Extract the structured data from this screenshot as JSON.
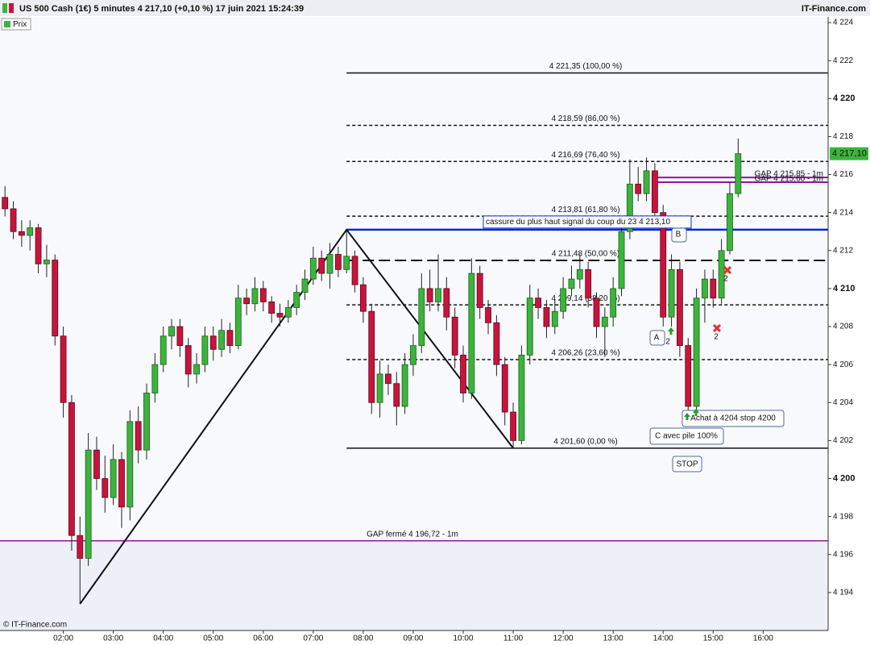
{
  "chart_data": {
    "type": "candlestick",
    "title": "US 500 Cash (1€) 5 minutes 4 217,10 (+0,10 %) 17 juin 2021 15:24:39",
    "source": "IT-Finance.com",
    "copyright": "© IT-Finance.com",
    "legend": "Prix",
    "up_color": "#3cb43c",
    "down_color": "#c8143c",
    "xlim": [
      "00:44",
      "17:18"
    ],
    "ylim": [
      4192.0,
      4224.3
    ],
    "xticks": [
      "02:00",
      "03:00",
      "04:00",
      "05:00",
      "06:00",
      "07:00",
      "08:00",
      "09:00",
      "10:00",
      "11:00",
      "12:00",
      "13:00",
      "14:00",
      "15:00",
      "16:00"
    ],
    "yticks": [
      {
        "value": 4194,
        "label": "4 194"
      },
      {
        "value": 4196,
        "label": "4 196"
      },
      {
        "value": 4198,
        "label": "4 198"
      },
      {
        "value": 4200,
        "label": "4 200"
      },
      {
        "value": 4202,
        "label": "4 202"
      },
      {
        "value": 4204,
        "label": "4 204"
      },
      {
        "value": 4206,
        "label": "4 206"
      },
      {
        "value": 4208,
        "label": "4 208"
      },
      {
        "value": 4210,
        "label": "4 210"
      },
      {
        "value": 4212,
        "label": "4 212"
      },
      {
        "value": 4214,
        "label": "4 214"
      },
      {
        "value": 4216,
        "label": "4 216"
      },
      {
        "value": 4218,
        "label": "4 218"
      },
      {
        "value": 4220,
        "label": "4 220"
      },
      {
        "value": 4222,
        "label": "4 222"
      },
      {
        "value": 4224,
        "label": "4 224"
      }
    ],
    "x": [
      "00:50",
      "01:00",
      "01:10",
      "01:20",
      "01:30",
      "01:40",
      "01:50",
      "02:00",
      "02:10",
      "02:20",
      "02:30",
      "02:40",
      "02:50",
      "03:00",
      "03:10",
      "03:20",
      "03:30",
      "03:40",
      "03:50",
      "04:00",
      "04:10",
      "04:20",
      "04:30",
      "04:40",
      "04:50",
      "05:00",
      "05:10",
      "05:20",
      "05:30",
      "05:40",
      "05:50",
      "06:00",
      "06:10",
      "06:20",
      "06:30",
      "06:40",
      "06:50",
      "07:00",
      "07:10",
      "07:20",
      "07:30",
      "07:40",
      "07:50",
      "08:00",
      "08:10",
      "08:20",
      "08:30",
      "08:40",
      "08:50",
      "09:00",
      "09:10",
      "09:20",
      "09:30",
      "09:40",
      "09:50",
      "10:00",
      "10:10",
      "10:20",
      "10:30",
      "10:40",
      "10:50",
      "11:00",
      "11:10",
      "11:20",
      "11:30",
      "11:40",
      "11:50",
      "12:00",
      "12:10",
      "12:20",
      "12:30",
      "12:40",
      "12:50",
      "13:00",
      "13:10",
      "13:20",
      "13:30",
      "13:40",
      "13:50",
      "14:00",
      "14:10",
      "14:20",
      "14:30",
      "14:40",
      "14:50",
      "15:00",
      "15:10",
      "15:20",
      "15:30"
    ],
    "ohlc": [
      [
        4214.8,
        4215.4,
        4213.8,
        4214.2
      ],
      [
        4214.2,
        4214.6,
        4212.6,
        4213.0
      ],
      [
        4213.0,
        4213.6,
        4212.2,
        4212.8
      ],
      [
        4212.8,
        4213.6,
        4212.0,
        4213.2
      ],
      [
        4213.2,
        4213.4,
        4210.8,
        4211.3
      ],
      [
        4211.3,
        4212.3,
        4210.6,
        4211.5
      ],
      [
        4211.5,
        4211.8,
        4207.0,
        4207.5
      ],
      [
        4207.5,
        4208.0,
        4203.2,
        4204.0
      ],
      [
        4204.0,
        4204.4,
        4196.2,
        4197.0
      ],
      [
        4197.0,
        4198.0,
        4193.4,
        4195.8
      ],
      [
        4195.8,
        4202.4,
        4195.4,
        4201.5
      ],
      [
        4201.5,
        4202.2,
        4199.4,
        4200.0
      ],
      [
        4200.0,
        4201.2,
        4198.2,
        4199.0
      ],
      [
        4199.0,
        4201.8,
        4198.6,
        4201.0
      ],
      [
        4201.0,
        4201.4,
        4197.4,
        4198.5
      ],
      [
        4198.5,
        4203.6,
        4197.8,
        4203.0
      ],
      [
        4203.0,
        4203.8,
        4200.8,
        4201.5
      ],
      [
        4201.5,
        4205.0,
        4201.0,
        4204.5
      ],
      [
        4204.5,
        4206.6,
        4204.0,
        4206.0
      ],
      [
        4206.0,
        4208.0,
        4205.6,
        4207.5
      ],
      [
        4207.5,
        4208.4,
        4206.8,
        4208.0
      ],
      [
        4208.0,
        4208.4,
        4206.4,
        4207.0
      ],
      [
        4207.0,
        4207.4,
        4204.8,
        4205.5
      ],
      [
        4205.5,
        4206.6,
        4205.0,
        4206.0
      ],
      [
        4206.0,
        4208.0,
        4205.6,
        4207.5
      ],
      [
        4207.5,
        4208.0,
        4206.2,
        4206.8
      ],
      [
        4206.8,
        4208.4,
        4206.4,
        4207.8
      ],
      [
        4207.8,
        4208.2,
        4206.6,
        4207.0
      ],
      [
        4207.0,
        4210.2,
        4206.8,
        4209.5
      ],
      [
        4209.5,
        4210.0,
        4208.6,
        4209.2
      ],
      [
        4209.2,
        4210.6,
        4208.8,
        4210.0
      ],
      [
        4210.0,
        4210.4,
        4208.8,
        4209.3
      ],
      [
        4209.3,
        4209.6,
        4208.2,
        4208.7
      ],
      [
        4208.7,
        4209.2,
        4208.0,
        4208.5
      ],
      [
        4208.5,
        4209.4,
        4208.2,
        4209.0
      ],
      [
        4209.0,
        4210.2,
        4208.6,
        4209.8
      ],
      [
        4209.8,
        4211.0,
        4209.4,
        4210.5
      ],
      [
        4210.5,
        4212.2,
        4210.2,
        4211.6
      ],
      [
        4211.6,
        4212.0,
        4210.4,
        4210.8
      ],
      [
        4210.8,
        4212.4,
        4210.0,
        4211.8
      ],
      [
        4211.8,
        4212.2,
        4210.6,
        4211.0
      ],
      [
        4211.0,
        4213.1,
        4210.8,
        4211.7
      ],
      [
        4211.7,
        4212.0,
        4209.8,
        4210.2
      ],
      [
        4210.2,
        4210.6,
        4208.2,
        4208.8
      ],
      [
        4208.8,
        4209.2,
        4203.4,
        4204.0
      ],
      [
        4204.0,
        4206.2,
        4203.2,
        4205.5
      ],
      [
        4205.5,
        4206.0,
        4204.4,
        4205.0
      ],
      [
        4205.0,
        4205.6,
        4202.8,
        4203.8
      ],
      [
        4203.8,
        4206.6,
        4203.4,
        4206.0
      ],
      [
        4206.0,
        4207.6,
        4205.4,
        4207.0
      ],
      [
        4207.0,
        4210.8,
        4206.6,
        4210.0
      ],
      [
        4210.0,
        4211.0,
        4208.8,
        4209.3
      ],
      [
        4209.3,
        4211.8,
        4208.8,
        4210.0
      ],
      [
        4210.0,
        4210.6,
        4207.8,
        4208.5
      ],
      [
        4208.5,
        4209.0,
        4205.8,
        4206.5
      ],
      [
        4206.5,
        4207.0,
        4204.0,
        4204.5
      ],
      [
        4204.5,
        4211.6,
        4204.2,
        4210.8
      ],
      [
        4210.8,
        4211.2,
        4208.4,
        4209.0
      ],
      [
        4209.0,
        4209.4,
        4207.6,
        4208.2
      ],
      [
        4208.2,
        4208.6,
        4205.4,
        4206.0
      ],
      [
        4206.0,
        4206.4,
        4202.8,
        4203.5
      ],
      [
        4203.5,
        4204.0,
        4201.6,
        4202.0
      ],
      [
        4202.0,
        4207.0,
        4201.8,
        4206.5
      ],
      [
        4206.5,
        4210.2,
        4206.0,
        4209.5
      ],
      [
        4209.5,
        4210.0,
        4208.4,
        4209.0
      ],
      [
        4209.0,
        4209.4,
        4207.4,
        4208.0
      ],
      [
        4208.0,
        4209.4,
        4207.6,
        4208.8
      ],
      [
        4208.8,
        4210.6,
        4208.4,
        4210.0
      ],
      [
        4210.0,
        4211.2,
        4209.6,
        4210.5
      ],
      [
        4210.5,
        4211.8,
        4210.0,
        4211.0
      ],
      [
        4211.0,
        4211.4,
        4209.0,
        4209.5
      ],
      [
        4209.5,
        4209.8,
        4207.4,
        4208.0
      ],
      [
        4208.0,
        4209.0,
        4206.4,
        4208.5
      ],
      [
        4208.5,
        4210.6,
        4208.0,
        4210.0
      ],
      [
        4210.0,
        4213.6,
        4209.6,
        4213.0
      ],
      [
        4213.0,
        4216.8,
        4212.6,
        4215.5
      ],
      [
        4215.5,
        4216.4,
        4214.6,
        4215.0
      ],
      [
        4215.0,
        4216.9,
        4214.6,
        4216.2
      ],
      [
        4216.2,
        4216.6,
        4213.4,
        4214.0
      ],
      [
        4214.0,
        4214.4,
        4208.0,
        4208.5
      ],
      [
        4208.5,
        4211.8,
        4208.0,
        4211.0
      ],
      [
        4211.0,
        4211.4,
        4206.4,
        4207.0
      ],
      [
        4207.0,
        4207.4,
        4203.6,
        4203.8
      ],
      [
        4203.8,
        4210.0,
        4203.6,
        4209.5
      ],
      [
        4209.5,
        4211.0,
        4208.2,
        4210.5
      ],
      [
        4210.5,
        4211.0,
        4209.0,
        4209.5
      ],
      [
        4209.5,
        4212.6,
        4209.2,
        4212.0
      ],
      [
        4212.0,
        4215.6,
        4211.8,
        4215.0
      ],
      [
        4215.0,
        4217.9,
        4214.8,
        4217.1
      ]
    ],
    "last_price": {
      "value": 4217.1,
      "label": "4 217,10"
    },
    "zigzag": {
      "x": [
        "02:20",
        "07:40",
        "11:00"
      ],
      "y": [
        4193.4,
        4213.1,
        4201.6
      ]
    },
    "levels": [
      {
        "value": 4221.35,
        "label": "4 221,35 (100,00 %)",
        "style": "solid"
      },
      {
        "value": 4218.59,
        "label": "4 218,59 (86,00 %)",
        "style": "dotted"
      },
      {
        "value": 4216.69,
        "label": "4 216,69 (76,40 %)",
        "style": "dotted"
      },
      {
        "value": 4213.81,
        "label": "4 213,81 (61,80 %)",
        "style": "dotted"
      },
      {
        "value": 4211.48,
        "label": "4 211,48 (50,00 %)",
        "style": "dashed"
      },
      {
        "value": 4209.14,
        "label": "4 209,14 (38,20 %)",
        "style": "dotted"
      },
      {
        "value": 4206.26,
        "label": "4 206,26 (23,60 %)",
        "style": "dotted"
      },
      {
        "value": 4201.6,
        "label": "4 201,60 (0,00 %)",
        "style": "solid"
      }
    ],
    "breakout": {
      "value": 4213.1,
      "label": "cassure du plus haut signal du coup du 23 4 213,10",
      "color": "#0a2ad0"
    },
    "gaps": [
      {
        "value": 4215.85,
        "label": "GAP 4 215,85 - 1m"
      },
      {
        "value": 4215.6,
        "label": "GAP 4 215,60 - 1m"
      }
    ],
    "gap_closed": {
      "value": 4196.72,
      "label": "GAP fermé 4 196,72 - 1m"
    },
    "gap_color": "#8a1a9a",
    "annotations": [
      "A",
      "B",
      "2",
      "2",
      "2",
      "Achat à 4204 stop 4200",
      "C avec pile 100%",
      "STOP"
    ]
  }
}
